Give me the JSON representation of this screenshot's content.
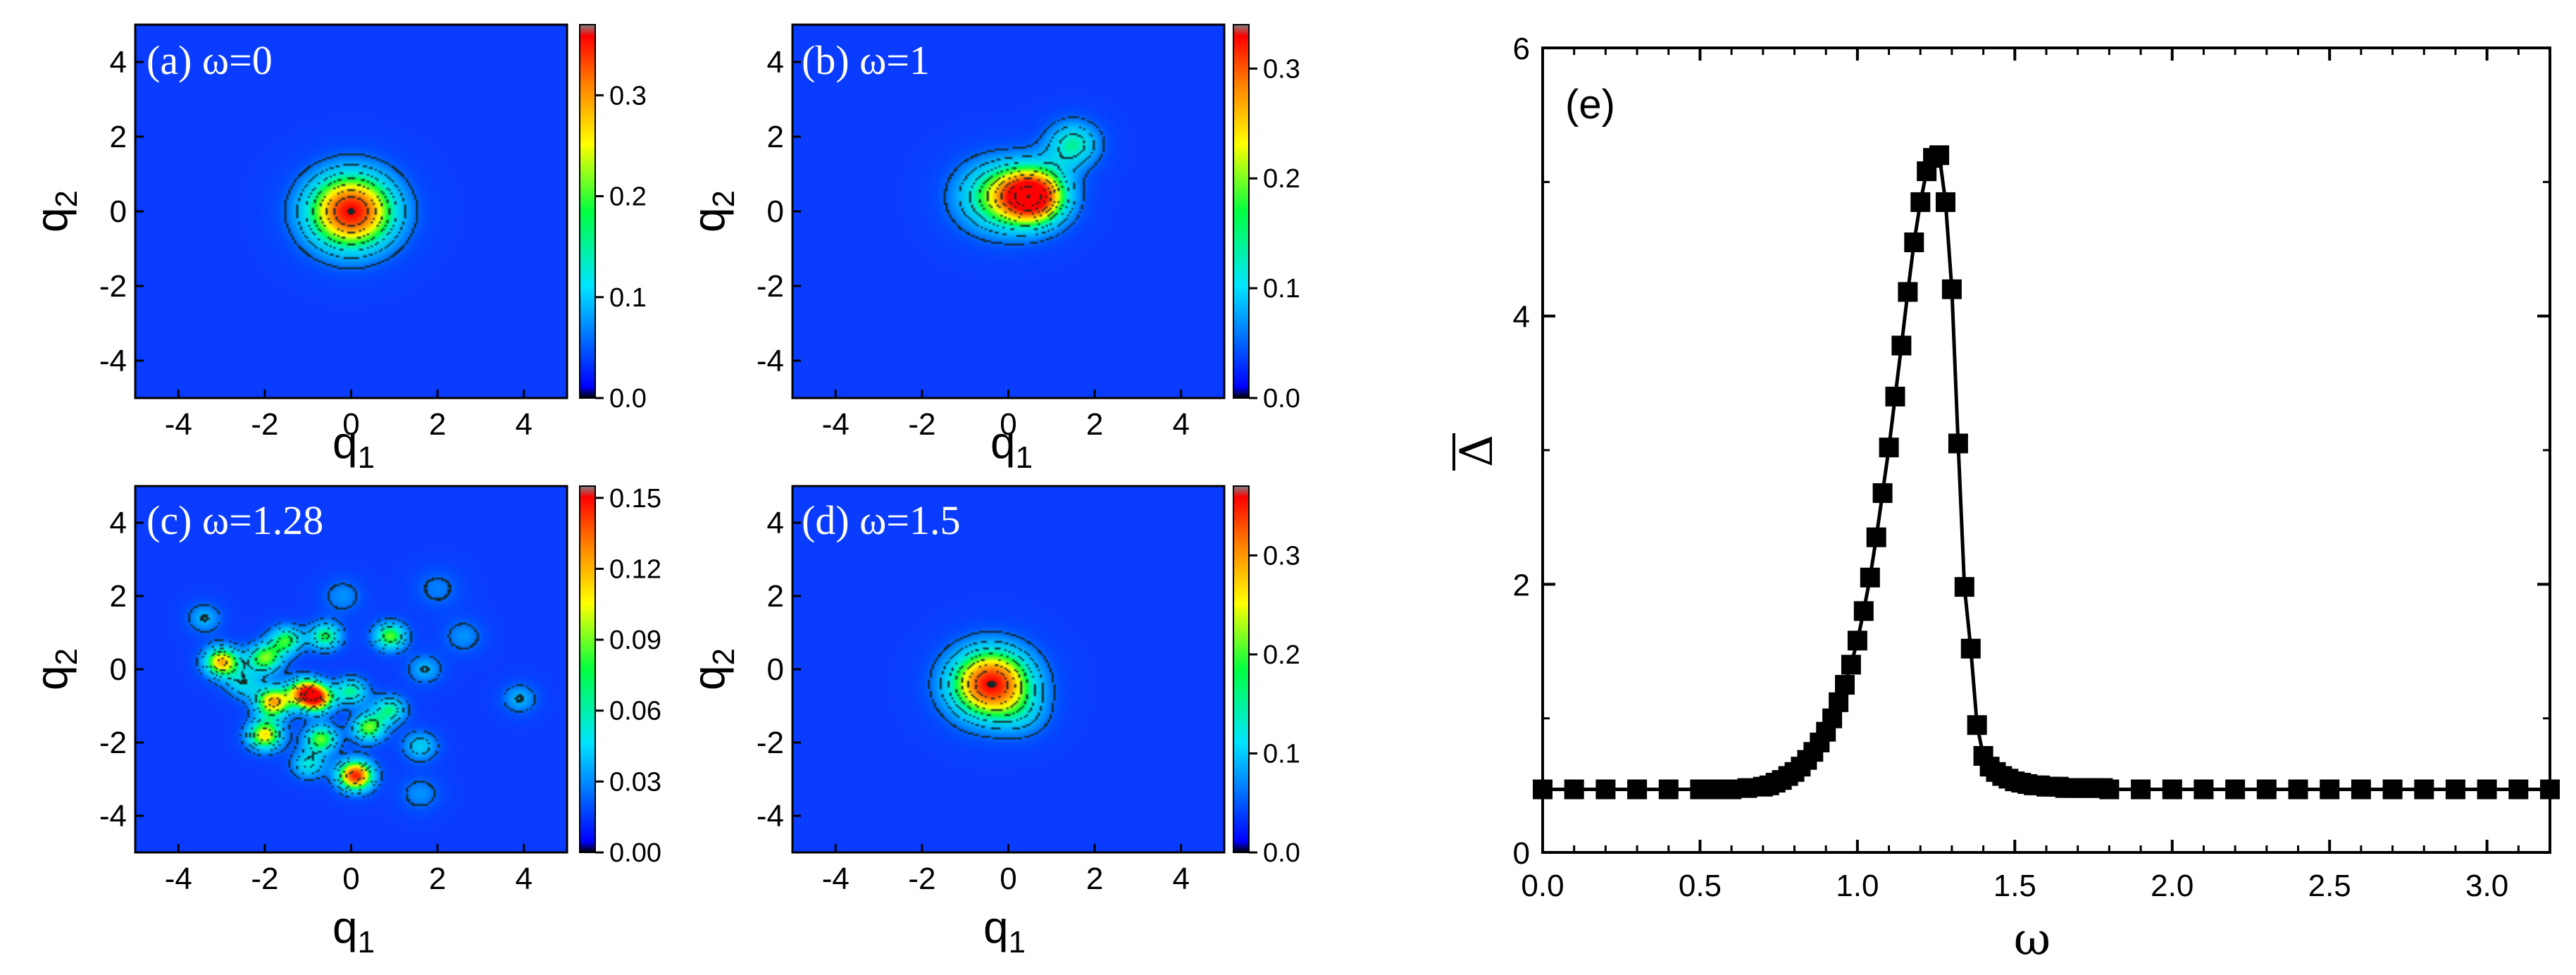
{
  "colors": {
    "map_background": "#0a3cff",
    "colormap": [
      "#000000",
      "#0000ff",
      "#00e5ff",
      "#00ff40",
      "#ffff00",
      "#ff8000",
      "#ff0000",
      "#808080"
    ],
    "line": "#000000"
  },
  "chart_data": [
    {
      "type": "heatmap",
      "panel": "(a)",
      "title": "(a) ω=0",
      "xlabel": "q",
      "xlabel_sub": "1",
      "ylabel": "q",
      "ylabel_sub": "2",
      "xlim": [
        -5,
        5
      ],
      "ylim": [
        -5,
        5
      ],
      "xticks": [
        "-4",
        "-2",
        "0",
        "2",
        "4"
      ],
      "yticks": [
        "-4",
        "-2",
        "0",
        "2",
        "4"
      ],
      "colorbar": {
        "range": [
          0,
          0.37
        ],
        "ticks": [
          0.0,
          0.1,
          0.2,
          0.3
        ],
        "tick_labels": [
          "0.0",
          "0.1",
          "0.2",
          "0.3"
        ]
      },
      "peaks": [
        {
          "q1": 0.0,
          "q2": 0.0,
          "amplitude": 0.37,
          "sigma": 0.75
        }
      ]
    },
    {
      "type": "heatmap",
      "panel": "(b)",
      "title": "(b) ω=1",
      "xlabel": "q",
      "xlabel_sub": "1",
      "ylabel": "q",
      "ylabel_sub": "2",
      "xlim": [
        -5,
        5
      ],
      "ylim": [
        -5,
        5
      ],
      "xticks": [
        "-4",
        "-2",
        "0",
        "2",
        "4"
      ],
      "yticks": [
        "-4",
        "-2",
        "0",
        "2",
        "4"
      ],
      "colorbar": {
        "range": [
          0,
          0.34
        ],
        "ticks": [
          0.0,
          0.1,
          0.2,
          0.3
        ],
        "tick_labels": [
          "0.0",
          "0.1",
          "0.2",
          "0.3"
        ]
      },
      "peaks": [
        {
          "q1": 0.6,
          "q2": 0.4,
          "amplitude": 0.34,
          "sigma": 0.55
        },
        {
          "q1": -0.3,
          "q2": 0.4,
          "amplitude": 0.17,
          "sigma": 0.7
        },
        {
          "q1": 1.5,
          "q2": 1.8,
          "amplitude": 0.15,
          "sigma": 0.45
        }
      ]
    },
    {
      "type": "heatmap",
      "panel": "(c)",
      "title": "(c) ω=1.28",
      "xlabel": "q",
      "xlabel_sub": "1",
      "ylabel": "q",
      "ylabel_sub": "2",
      "xlim": [
        -5,
        5
      ],
      "ylim": [
        -5,
        5
      ],
      "xticks": [
        "-4",
        "-2",
        "0",
        "2",
        "4"
      ],
      "yticks": [
        "-4",
        "-2",
        "0",
        "2",
        "4"
      ],
      "colorbar": {
        "range": [
          0,
          0.155
        ],
        "ticks": [
          0.0,
          0.03,
          0.06,
          0.09,
          0.12,
          0.15
        ],
        "tick_labels": [
          "0.00",
          "0.03",
          "0.06",
          "0.09",
          "0.12",
          "0.15"
        ]
      },
      "peaks": [
        {
          "q1": -3.0,
          "q2": 0.2,
          "amplitude": 0.12,
          "sigma": 0.3
        },
        {
          "q1": -2.0,
          "q2": 0.3,
          "amplitude": 0.09,
          "sigma": 0.3
        },
        {
          "q1": -1.5,
          "q2": 0.8,
          "amplitude": 0.08,
          "sigma": 0.28
        },
        {
          "q1": -0.6,
          "q2": 0.9,
          "amplitude": 0.08,
          "sigma": 0.28
        },
        {
          "q1": 0.9,
          "q2": 0.9,
          "amplitude": 0.09,
          "sigma": 0.28
        },
        {
          "q1": -1.8,
          "q2": -0.9,
          "amplitude": 0.12,
          "sigma": 0.3
        },
        {
          "q1": -1.1,
          "q2": -0.6,
          "amplitude": 0.1,
          "sigma": 0.28
        },
        {
          "q1": -0.8,
          "q2": -0.8,
          "amplitude": 0.13,
          "sigma": 0.28
        },
        {
          "q1": 0.0,
          "q2": -0.6,
          "amplitude": 0.07,
          "sigma": 0.28
        },
        {
          "q1": -2.0,
          "q2": -1.8,
          "amplitude": 0.11,
          "sigma": 0.3
        },
        {
          "q1": -0.7,
          "q2": -1.9,
          "amplitude": 0.09,
          "sigma": 0.28
        },
        {
          "q1": 0.4,
          "q2": -1.6,
          "amplitude": 0.09,
          "sigma": 0.28
        },
        {
          "q1": 0.9,
          "q2": -1.1,
          "amplitude": 0.07,
          "sigma": 0.28
        },
        {
          "q1": 0.1,
          "q2": -2.9,
          "amplitude": 0.15,
          "sigma": 0.3
        },
        {
          "q1": -1.0,
          "q2": -2.6,
          "amplitude": 0.06,
          "sigma": 0.28
        },
        {
          "q1": -3.4,
          "q2": 1.4,
          "amplitude": 0.04,
          "sigma": 0.3
        },
        {
          "q1": 1.6,
          "q2": -2.1,
          "amplitude": 0.05,
          "sigma": 0.3
        },
        {
          "q1": 1.7,
          "q2": 0.0,
          "amplitude": 0.04,
          "sigma": 0.3
        },
        {
          "q1": 2.6,
          "q2": 0.9,
          "amplitude": 0.03,
          "sigma": 0.35
        },
        {
          "q1": 3.9,
          "q2": -0.8,
          "amplitude": 0.04,
          "sigma": 0.3
        },
        {
          "q1": 1.6,
          "q2": -3.4,
          "amplitude": 0.03,
          "sigma": 0.35
        },
        {
          "q1": -2.5,
          "q2": -0.4,
          "amplitude": 0.05,
          "sigma": 0.3
        },
        {
          "q1": 2.0,
          "q2": 2.2,
          "amplitude": 0.025,
          "sigma": 0.4
        },
        {
          "q1": -0.2,
          "q2": 2.0,
          "amplitude": 0.03,
          "sigma": 0.35
        }
      ]
    },
    {
      "type": "heatmap",
      "panel": "(d)",
      "title": "(d) ω=1.5",
      "xlabel": "q",
      "xlabel_sub": "1",
      "ylabel": "q",
      "ylabel_sub": "2",
      "xlim": [
        -5,
        5
      ],
      "ylim": [
        -5,
        5
      ],
      "xticks": [
        "-4",
        "-2",
        "0",
        "2",
        "4"
      ],
      "yticks": [
        "-4",
        "-2",
        "0",
        "2",
        "4"
      ],
      "colorbar": {
        "range": [
          0,
          0.37
        ],
        "ticks": [
          0.0,
          0.1,
          0.2,
          0.3
        ],
        "tick_labels": [
          "0.0",
          "0.1",
          "0.2",
          "0.3"
        ]
      },
      "peaks": [
        {
          "q1": -0.4,
          "q2": -0.4,
          "amplitude": 0.37,
          "sigma": 0.7
        },
        {
          "q1": 0.4,
          "q2": -1.3,
          "amplitude": 0.05,
          "sigma": 0.45
        }
      ]
    },
    {
      "type": "line",
      "panel": "(e)",
      "title": "(e)",
      "xlabel": "ω",
      "ylabel": "Δ",
      "ylabel_overline": true,
      "xlim": [
        0.0,
        3.2
      ],
      "ylim": [
        0,
        6
      ],
      "xticks": [
        "0.0",
        "0.5",
        "1.0",
        "1.5",
        "2.0",
        "2.5",
        "3.0"
      ],
      "yticks": [
        "0",
        "2",
        "4",
        "6"
      ],
      "marker": "square",
      "series": [
        {
          "name": "Δ",
          "x": [
            0.0,
            0.1,
            0.2,
            0.3,
            0.4,
            0.5,
            0.55,
            0.6,
            0.65,
            0.7,
            0.72,
            0.74,
            0.76,
            0.78,
            0.8,
            0.82,
            0.84,
            0.86,
            0.88,
            0.9,
            0.92,
            0.94,
            0.96,
            0.98,
            1.0,
            1.02,
            1.04,
            1.06,
            1.08,
            1.1,
            1.12,
            1.14,
            1.16,
            1.18,
            1.2,
            1.22,
            1.24,
            1.26,
            1.28,
            1.3,
            1.32,
            1.34,
            1.36,
            1.38,
            1.4,
            1.42,
            1.44,
            1.46,
            1.48,
            1.5,
            1.52,
            1.54,
            1.56,
            1.58,
            1.6,
            1.62,
            1.64,
            1.66,
            1.68,
            1.7,
            1.72,
            1.74,
            1.76,
            1.78,
            1.8,
            1.9,
            2.0,
            2.1,
            2.2,
            2.3,
            2.4,
            2.5,
            2.6,
            2.7,
            2.8,
            2.9,
            3.0,
            3.1,
            3.2
          ],
          "y": [
            0.47,
            0.47,
            0.47,
            0.47,
            0.47,
            0.47,
            0.47,
            0.47,
            0.48,
            0.49,
            0.5,
            0.52,
            0.54,
            0.57,
            0.6,
            0.64,
            0.69,
            0.75,
            0.82,
            0.9,
            1.0,
            1.12,
            1.25,
            1.4,
            1.58,
            1.8,
            2.05,
            2.35,
            2.68,
            3.02,
            3.4,
            3.78,
            4.18,
            4.55,
            4.85,
            5.08,
            5.18,
            5.2,
            4.85,
            4.2,
            3.05,
            1.98,
            1.52,
            0.95,
            0.72,
            0.64,
            0.6,
            0.57,
            0.55,
            0.53,
            0.52,
            0.51,
            0.5,
            0.5,
            0.49,
            0.49,
            0.49,
            0.48,
            0.48,
            0.48,
            0.48,
            0.48,
            0.48,
            0.48,
            0.47,
            0.47,
            0.47,
            0.47,
            0.47,
            0.47,
            0.47,
            0.47,
            0.47,
            0.47,
            0.47,
            0.47,
            0.47,
            0.47,
            0.47
          ]
        }
      ]
    }
  ]
}
